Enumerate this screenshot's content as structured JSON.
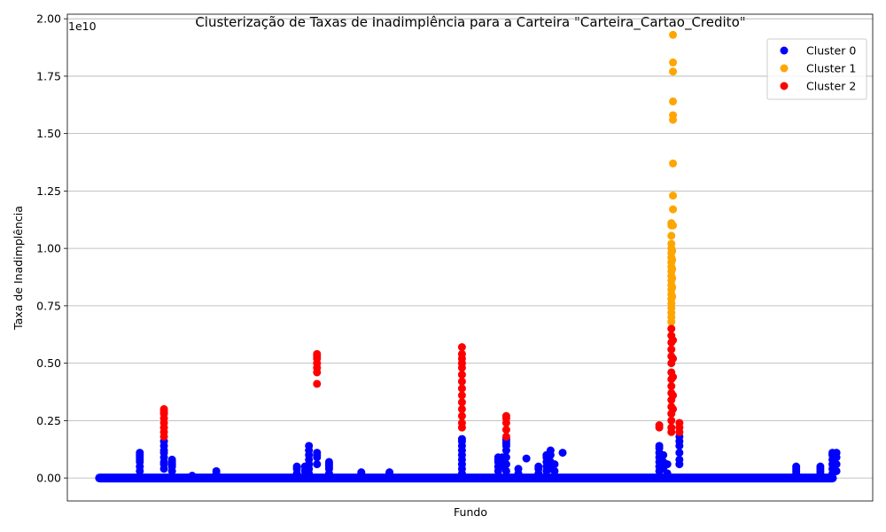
{
  "chart_data": {
    "type": "scatter",
    "title": "Clusterização de Taxas de Inadimplência para a Carteira \"Carteira_Cartao_Credito\"",
    "xlabel": "Fundo",
    "ylabel": "Taxa de Inadimplência",
    "y_offset_text": "1e10",
    "x_tick_labels_shown": false,
    "xlim": [
      -4,
      96
    ],
    "ylim": [
      -0.1,
      2.02
    ],
    "y_ticks": [
      0.0,
      0.25,
      0.5,
      0.75,
      1.0,
      1.25,
      1.5,
      1.75,
      2.0
    ],
    "y_tick_labels": [
      "0.00",
      "0.25",
      "0.50",
      "0.75",
      "1.00",
      "1.25",
      "1.50",
      "1.75",
      "2.00"
    ],
    "grid": "y-axis major",
    "legend_position": "top-right",
    "baseline": {
      "series": "Cluster 0",
      "y": 0.0,
      "x_from": 0,
      "x_to": 91
    },
    "series": [
      {
        "name": "Cluster 0",
        "color": "#0000ff",
        "points": [
          [
            5,
            0.03
          ],
          [
            5,
            0.05
          ],
          [
            5,
            0.07
          ],
          [
            5,
            0.08
          ],
          [
            5,
            0.09
          ],
          [
            5,
            0.1
          ],
          [
            5,
            0.11
          ],
          [
            8,
            0.04
          ],
          [
            8,
            0.06
          ],
          [
            8,
            0.07
          ],
          [
            8,
            0.09
          ],
          [
            8,
            0.11
          ],
          [
            8,
            0.12
          ],
          [
            8,
            0.14
          ],
          [
            8,
            0.16
          ],
          [
            9,
            0.03
          ],
          [
            9,
            0.05
          ],
          [
            9,
            0.06
          ],
          [
            9,
            0.07
          ],
          [
            9,
            0.08
          ],
          [
            11.5,
            0.01
          ],
          [
            14.5,
            0.02
          ],
          [
            14.5,
            0.03
          ],
          [
            24.5,
            0.02
          ],
          [
            24.5,
            0.04
          ],
          [
            24.5,
            0.05
          ],
          [
            25.5,
            0.03
          ],
          [
            25.5,
            0.05
          ],
          [
            26,
            0.02
          ],
          [
            26,
            0.04
          ],
          [
            26,
            0.06
          ],
          [
            26,
            0.08
          ],
          [
            26,
            0.1
          ],
          [
            26,
            0.12
          ],
          [
            26,
            0.14
          ],
          [
            27,
            0.06
          ],
          [
            27,
            0.09
          ],
          [
            27,
            0.1
          ],
          [
            27,
            0.11
          ],
          [
            28.5,
            0.02
          ],
          [
            28.5,
            0.04
          ],
          [
            28.5,
            0.05
          ],
          [
            28.5,
            0.06
          ],
          [
            28.5,
            0.07
          ],
          [
            32.5,
            0.02
          ],
          [
            32.5,
            0.025
          ],
          [
            36,
            0.02
          ],
          [
            36,
            0.025
          ],
          [
            45,
            0.02
          ],
          [
            45,
            0.04
          ],
          [
            45,
            0.06
          ],
          [
            45,
            0.08
          ],
          [
            45,
            0.1
          ],
          [
            45,
            0.12
          ],
          [
            45,
            0.14
          ],
          [
            45,
            0.16
          ],
          [
            45,
            0.17
          ],
          [
            49.5,
            0.03
          ],
          [
            49.5,
            0.05
          ],
          [
            49.5,
            0.07
          ],
          [
            49.5,
            0.08
          ],
          [
            49.5,
            0.09
          ],
          [
            50,
            0.05
          ],
          [
            50,
            0.07
          ],
          [
            50,
            0.09
          ],
          [
            50.5,
            0.03
          ],
          [
            50.5,
            0.06
          ],
          [
            50.5,
            0.09
          ],
          [
            50.5,
            0.12
          ],
          [
            50.5,
            0.14
          ],
          [
            50.5,
            0.15
          ],
          [
            50.5,
            0.16
          ],
          [
            50.5,
            0.17
          ],
          [
            52,
            0.02
          ],
          [
            52,
            0.04
          ],
          [
            53,
            0.085
          ],
          [
            54.5,
            0.02
          ],
          [
            54.5,
            0.04
          ],
          [
            54.5,
            0.05
          ],
          [
            55.5,
            0.03
          ],
          [
            55.5,
            0.05
          ],
          [
            55.5,
            0.07
          ],
          [
            55.5,
            0.09
          ],
          [
            55.5,
            0.1
          ],
          [
            56,
            0.04
          ],
          [
            56,
            0.07
          ],
          [
            56,
            0.1
          ],
          [
            56,
            0.12
          ],
          [
            56.5,
            0.03
          ],
          [
            56.5,
            0.06
          ],
          [
            57.5,
            0.11
          ],
          [
            69.5,
            0.03
          ],
          [
            69.5,
            0.05
          ],
          [
            69.5,
            0.07
          ],
          [
            69.5,
            0.09
          ],
          [
            69.5,
            0.11
          ],
          [
            69.5,
            0.13
          ],
          [
            69.5,
            0.14
          ],
          [
            70,
            0.04
          ],
          [
            70,
            0.07
          ],
          [
            70,
            0.1
          ],
          [
            70.5,
            0.02
          ],
          [
            70.5,
            0.06
          ],
          [
            72,
            0.06
          ],
          [
            72,
            0.08
          ],
          [
            72,
            0.11
          ],
          [
            72,
            0.14
          ],
          [
            72,
            0.16
          ],
          [
            72,
            0.18
          ],
          [
            86.5,
            0.01
          ],
          [
            86.5,
            0.02
          ],
          [
            86.5,
            0.03
          ],
          [
            86.5,
            0.04
          ],
          [
            86.5,
            0.05
          ],
          [
            89.5,
            0.02
          ],
          [
            89.5,
            0.03
          ],
          [
            89.5,
            0.04
          ],
          [
            89.5,
            0.05
          ],
          [
            91,
            0.02
          ],
          [
            91,
            0.04
          ],
          [
            91,
            0.06
          ],
          [
            91,
            0.08
          ],
          [
            91,
            0.1
          ],
          [
            91,
            0.11
          ],
          [
            91.5,
            0.03
          ],
          [
            91.5,
            0.06
          ],
          [
            91.5,
            0.09
          ],
          [
            91.5,
            0.11
          ]
        ]
      },
      {
        "name": "Cluster 1",
        "color": "#ffa500",
        "points": [
          [
            71,
            0.68
          ],
          [
            71,
            0.7
          ],
          [
            71,
            0.72
          ],
          [
            71,
            0.74
          ],
          [
            71,
            0.76
          ],
          [
            71,
            0.78
          ],
          [
            71,
            0.8
          ],
          [
            71,
            0.82
          ],
          [
            71,
            0.84
          ],
          [
            71,
            0.86
          ],
          [
            71,
            0.88
          ],
          [
            71,
            0.9
          ],
          [
            71,
            0.92
          ],
          [
            71,
            0.94
          ],
          [
            71,
            0.96
          ],
          [
            71,
            0.98
          ],
          [
            71,
            1.0
          ],
          [
            71,
            1.02
          ],
          [
            71,
            1.055
          ],
          [
            71,
            1.1
          ],
          [
            71,
            1.11
          ],
          [
            71.1,
            0.79
          ],
          [
            71.1,
            0.83
          ],
          [
            71.1,
            0.87
          ],
          [
            71.1,
            0.91
          ],
          [
            71.1,
            0.95
          ],
          [
            71.1,
            0.99
          ],
          [
            71.2,
            1.1
          ],
          [
            71.2,
            1.17
          ],
          [
            71.2,
            1.23
          ],
          [
            71.2,
            1.37
          ],
          [
            71.2,
            1.56
          ],
          [
            71.2,
            1.58
          ],
          [
            71.2,
            1.64
          ],
          [
            71.2,
            1.77
          ],
          [
            71.2,
            1.81
          ],
          [
            71.2,
            1.93
          ]
        ]
      },
      {
        "name": "Cluster 2",
        "color": "#ff0000",
        "points": [
          [
            8,
            0.18
          ],
          [
            8,
            0.2
          ],
          [
            8,
            0.22
          ],
          [
            8,
            0.24
          ],
          [
            8,
            0.26
          ],
          [
            8,
            0.28
          ],
          [
            8,
            0.29
          ],
          [
            8,
            0.3
          ],
          [
            27,
            0.41
          ],
          [
            27,
            0.46
          ],
          [
            27,
            0.48
          ],
          [
            27,
            0.5
          ],
          [
            27,
            0.52
          ],
          [
            27,
            0.53
          ],
          [
            27,
            0.54
          ],
          [
            45,
            0.22
          ],
          [
            45,
            0.24
          ],
          [
            45,
            0.27
          ],
          [
            45,
            0.3
          ],
          [
            45,
            0.33
          ],
          [
            45,
            0.36
          ],
          [
            45,
            0.39
          ],
          [
            45,
            0.42
          ],
          [
            45,
            0.45
          ],
          [
            45,
            0.48
          ],
          [
            45,
            0.5
          ],
          [
            45,
            0.52
          ],
          [
            45,
            0.54
          ],
          [
            45,
            0.57
          ],
          [
            50.5,
            0.18
          ],
          [
            50.5,
            0.21
          ],
          [
            50.5,
            0.24
          ],
          [
            50.5,
            0.26
          ],
          [
            50.5,
            0.27
          ],
          [
            69.5,
            0.22
          ],
          [
            69.5,
            0.23
          ],
          [
            71,
            0.2
          ],
          [
            71,
            0.22
          ],
          [
            71,
            0.25
          ],
          [
            71,
            0.28
          ],
          [
            71,
            0.31
          ],
          [
            71,
            0.34
          ],
          [
            71,
            0.37
          ],
          [
            71,
            0.4
          ],
          [
            71,
            0.43
          ],
          [
            71,
            0.46
          ],
          [
            71,
            0.5
          ],
          [
            71,
            0.53
          ],
          [
            71,
            0.56
          ],
          [
            71,
            0.59
          ],
          [
            71,
            0.62
          ],
          [
            71,
            0.65
          ],
          [
            71.2,
            0.3
          ],
          [
            71.2,
            0.36
          ],
          [
            71.2,
            0.44
          ],
          [
            71.2,
            0.52
          ],
          [
            71.2,
            0.6
          ],
          [
            72,
            0.2
          ],
          [
            72,
            0.22
          ],
          [
            72,
            0.24
          ]
        ]
      }
    ]
  }
}
